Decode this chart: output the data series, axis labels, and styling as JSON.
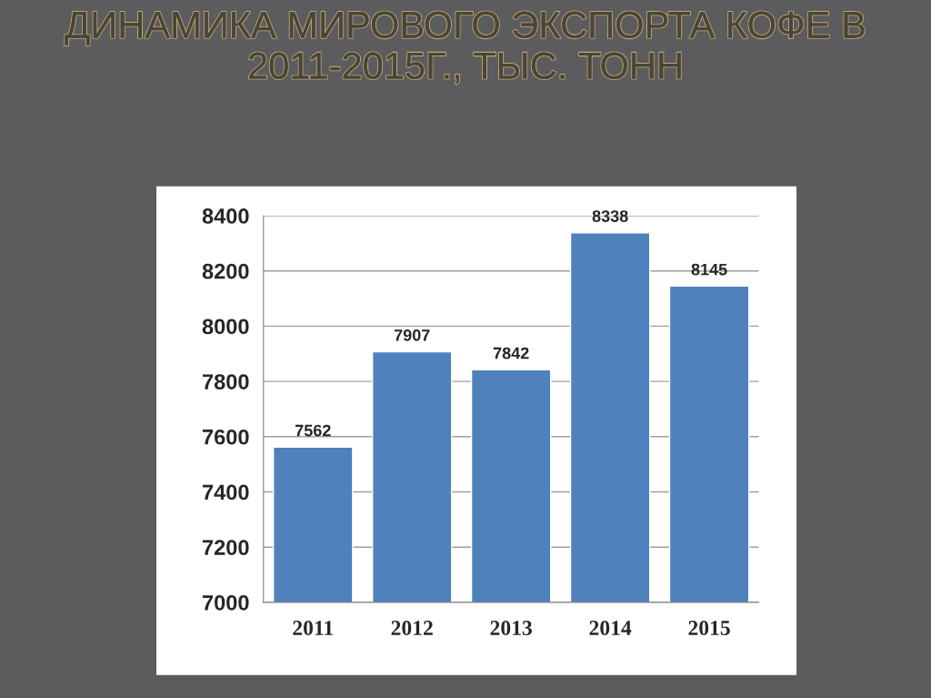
{
  "chart_data": {
    "type": "bar",
    "title": "ДИНАМИКА МИРОВОГО ЭКСПОРТА КОФЕ В 2011-2015Г., ТЫС. ТОНН",
    "categories": [
      "2011",
      "2012",
      "2013",
      "2014",
      "2015"
    ],
    "values": [
      7562,
      7907,
      7842,
      8338,
      8145
    ],
    "color": "#4f81bd",
    "ylim": [
      7000,
      8400
    ],
    "yticks": [
      7000,
      7200,
      7400,
      7600,
      7800,
      8000,
      8200,
      8400
    ],
    "grid": "y",
    "data_labels": true
  }
}
